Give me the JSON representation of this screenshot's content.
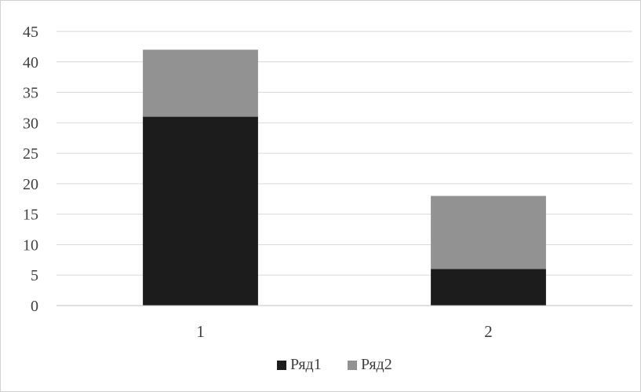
{
  "colors": {
    "series1": "#1c1c1c",
    "series2": "#929292",
    "grid": "#d9d9d9",
    "axis": "#bfbfbf",
    "text": "#404040"
  },
  "chart_data": {
    "type": "bar",
    "stacked": true,
    "categories": [
      "1",
      "2"
    ],
    "series": [
      {
        "name": "Ряд1",
        "values": [
          31,
          6
        ]
      },
      {
        "name": "Ряд2",
        "values": [
          11,
          12
        ]
      }
    ],
    "title": "",
    "xlabel": "",
    "ylabel": "",
    "ylim": [
      0,
      45
    ],
    "yticks": [
      "0",
      "5",
      "10",
      "15",
      "20",
      "25",
      "30",
      "35",
      "40",
      "45"
    ],
    "grid": true,
    "legend": "bottom"
  }
}
